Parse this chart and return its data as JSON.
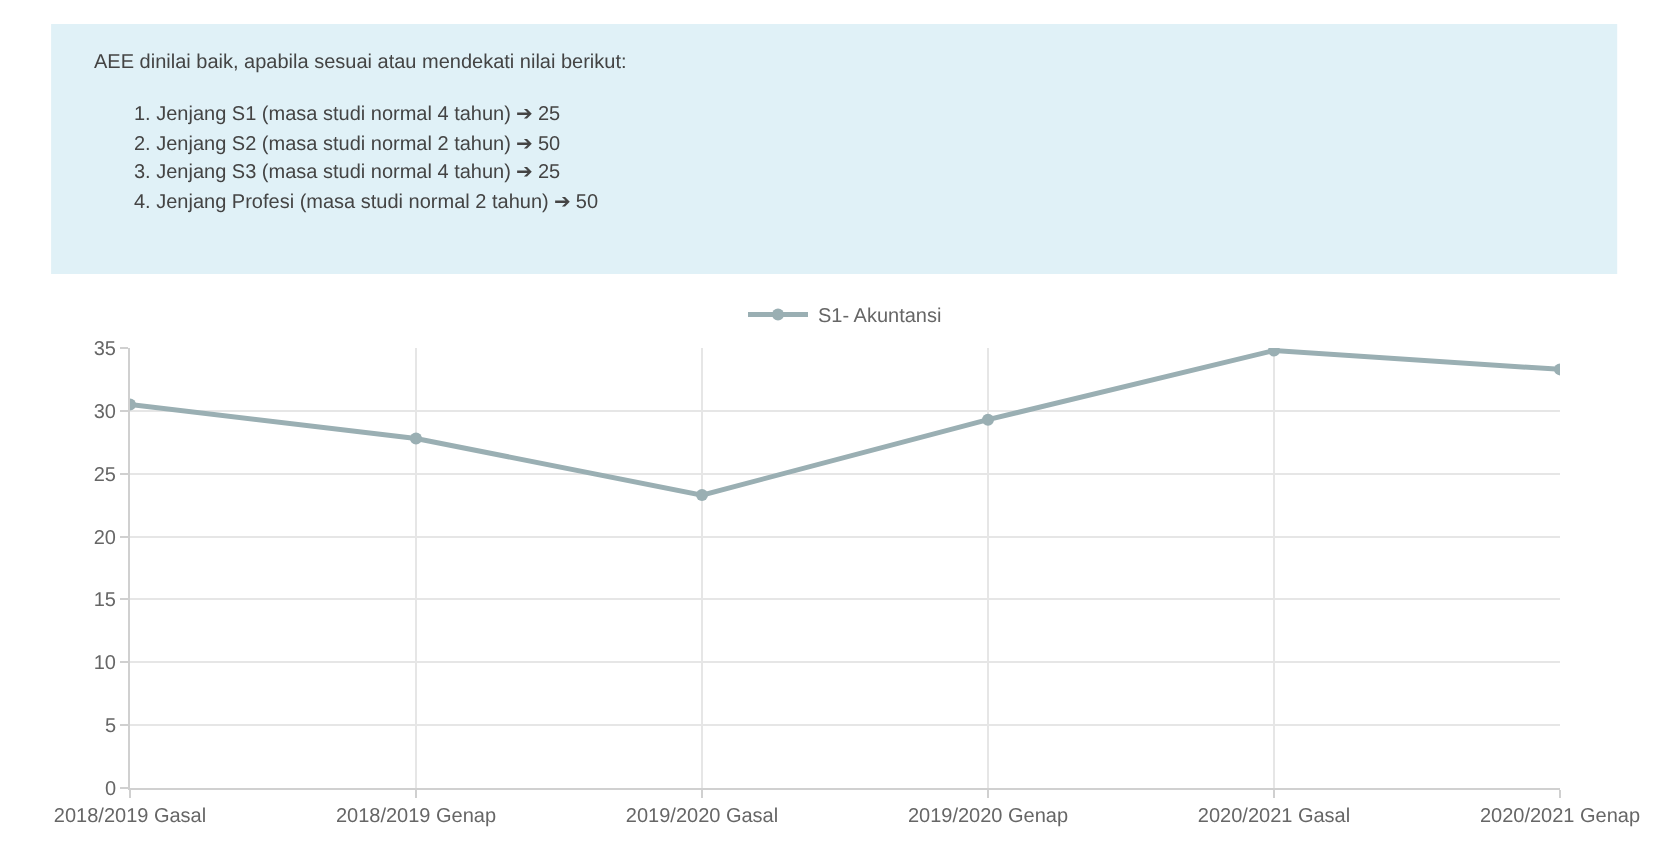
{
  "chart_data": {
    "type": "line",
    "annotations": [
      "AEE dinilai baik, apabila sesuai atau mendekati nilai berikut:",
      "1. Jenjang S1 (masa studi normal 4 tahun) ➔ 25",
      "2. Jenjang S2 (masa studi normal 2 tahun) ➔ 50",
      "3. Jenjang S3 (masa studi normal 4 tahun) ➔ 25",
      "4. Jenjang Profesi (masa studi normal 2 tahun) ➔ 50"
    ],
    "categories": [
      "2018/2019 Gasal",
      "2018/2019 Genap",
      "2019/2020 Gasal",
      "2019/2020 Genap",
      "2020/2021 Gasal",
      "2020/2021 Genap"
    ],
    "series": [
      {
        "name": "S1- Akuntansi",
        "color": "#9aafb3",
        "values": [
          30.5,
          27.8,
          23.3,
          29.3,
          34.8,
          33.3
        ]
      }
    ],
    "ylim": [
      0,
      35
    ],
    "yticks": [
      0,
      5,
      10,
      15,
      20,
      25,
      30,
      35
    ],
    "grid": true,
    "legend": "top",
    "marker": "circle",
    "line_style": "solid"
  }
}
